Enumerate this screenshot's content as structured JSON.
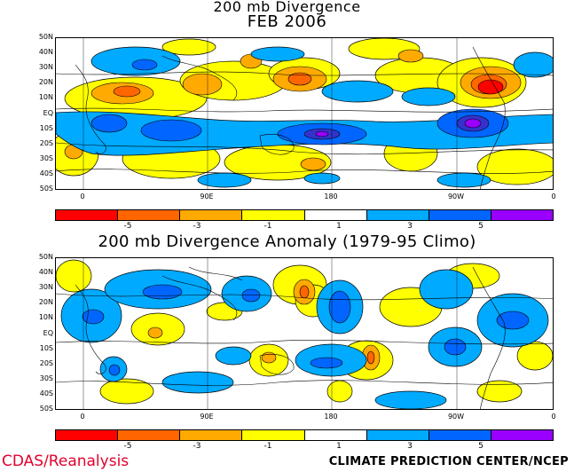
{
  "titles": {
    "top_line1": "200 mb Divergence",
    "top_line2": "FEB 2006",
    "bottom": "200 mb Divergence Anomaly (1979-95 Climo)"
  },
  "lat_labels": [
    "50N",
    "40N",
    "30N",
    "20N",
    "10N",
    "EQ",
    "10S",
    "20S",
    "30S",
    "40S",
    "50S"
  ],
  "lon_labels": [
    "0",
    "90E",
    "180",
    "90W",
    "0"
  ],
  "colorbar": {
    "colors": [
      "#ff0000",
      "#ff6600",
      "#ffaa00",
      "#ffff00",
      "#ffffff",
      "#00aaff",
      "#0066ff",
      "#3333cc",
      "#9900ff"
    ],
    "labels": [
      "-5",
      "-3",
      "-1",
      "1",
      "3",
      "5"
    ]
  },
  "footer": {
    "left": "CDAS/Reanalysis",
    "right": "CLIMATE PREDICTION CENTER/NCEP"
  }
}
